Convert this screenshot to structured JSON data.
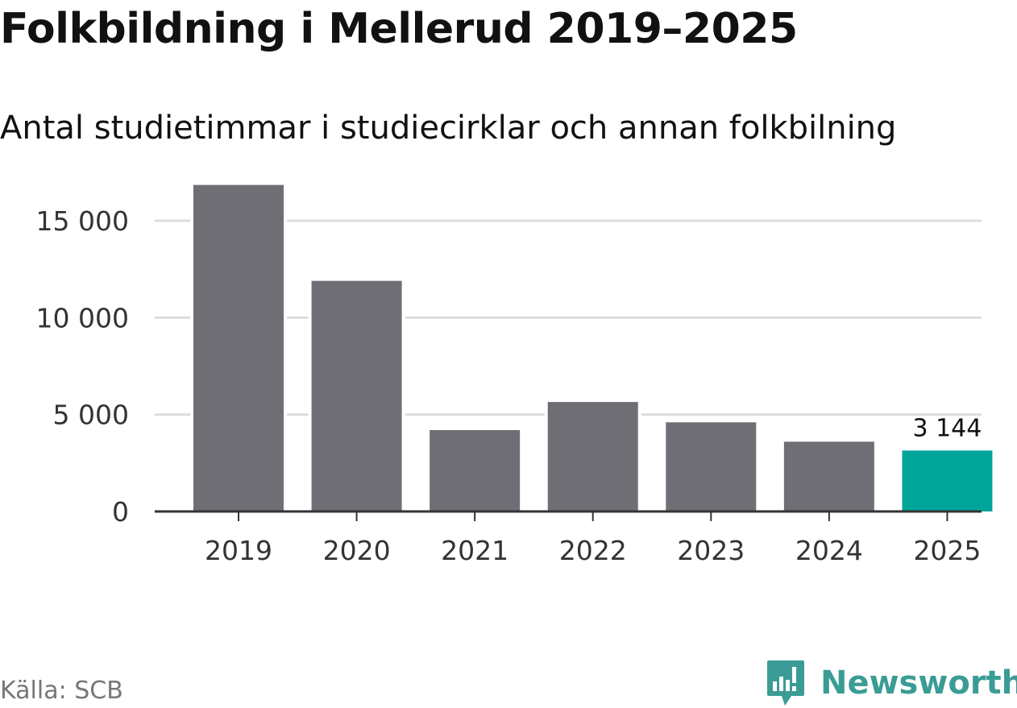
{
  "title": "Folkbildning i Mellerud 2019–2025",
  "subtitle": "Antal studietimmar i studiecirklar och annan folkbilning",
  "source": "Källa: SCB",
  "brand": "Newsworthy",
  "colors": {
    "bar": "#6f6e75",
    "highlight": "#00a59a",
    "grid": "#dddddd",
    "axis": "#333333",
    "brand": "#3a9c95"
  },
  "chart_data": {
    "type": "bar",
    "title": "Folkbildning i Mellerud 2019–2025",
    "subtitle": "Antal studietimmar i studiecirklar och annan folkbilning",
    "categories": [
      "2019",
      "2020",
      "2021",
      "2022",
      "2023",
      "2024",
      "2025"
    ],
    "values": [
      16850,
      11900,
      4200,
      5650,
      4600,
      3600,
      3144
    ],
    "highlight_index": 6,
    "data_labels": [
      {
        "index": 6,
        "text": "3 144"
      }
    ],
    "yticks": [
      {
        "value": 0,
        "label": "0"
      },
      {
        "value": 5000,
        "label": "5 000"
      },
      {
        "value": 10000,
        "label": "10 000"
      },
      {
        "value": 15000,
        "label": "15 000"
      }
    ],
    "ylim": [
      0,
      17000
    ],
    "xlabel": "",
    "ylabel": "",
    "grid": true
  }
}
